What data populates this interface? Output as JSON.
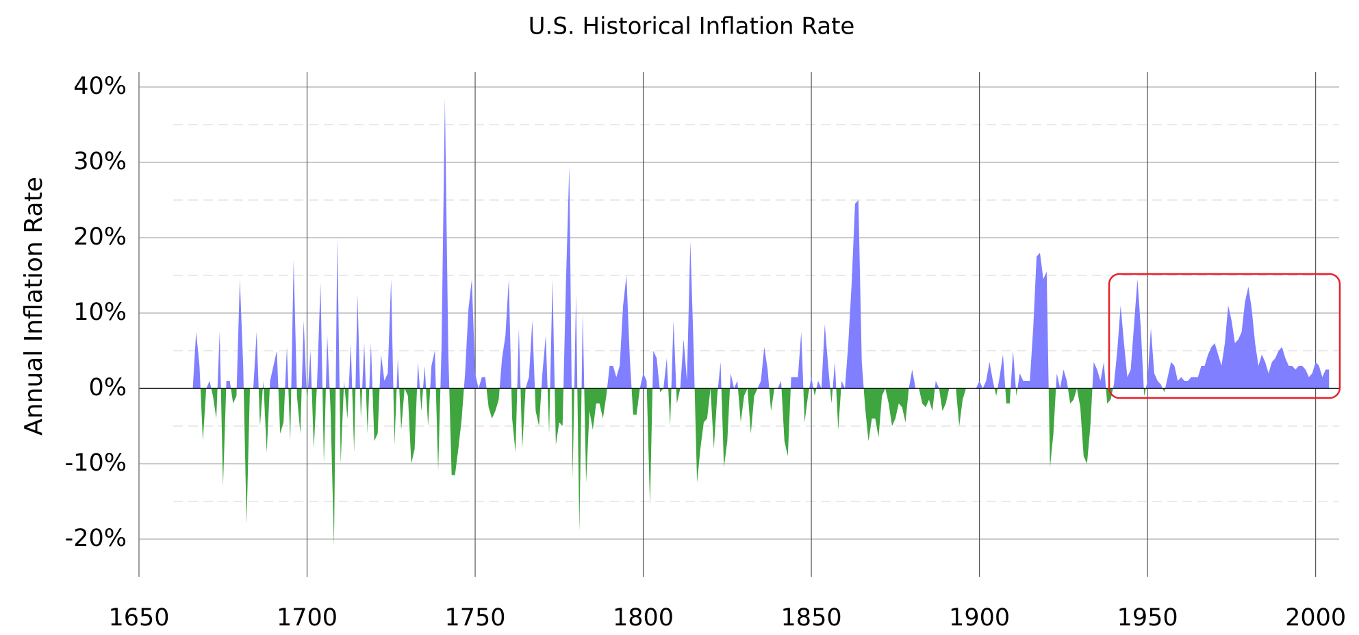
{
  "chart_data": {
    "type": "area",
    "title": "U.S. Historical Inflation Rate",
    "ylabel": "Annual Inflation Rate",
    "color": "#7f7fff",
    "negative_color": "#3fa53f",
    "xlim": [
      1650,
      2007
    ],
    "ylim": [
      -25,
      42
    ],
    "xticks": [
      1650,
      1700,
      1750,
      1800,
      1850,
      1900,
      1950,
      2000
    ],
    "yticks": [
      {
        "value": -20,
        "label": "-20%"
      },
      {
        "value": -10,
        "label": "-10%"
      },
      {
        "value": 0,
        "label": "0%"
      },
      {
        "value": 10,
        "label": "10%"
      },
      {
        "value": 20,
        "label": "20%"
      },
      {
        "value": 30,
        "label": "30%"
      },
      {
        "value": 40,
        "label": "40%"
      }
    ],
    "minor_yticks": [
      -15,
      -5,
      5,
      15,
      25,
      35
    ],
    "grid": true,
    "x": [
      1666,
      1667,
      1668,
      1669,
      1670,
      1671,
      1672,
      1673,
      1674,
      1675,
      1676,
      1677,
      1678,
      1679,
      1680,
      1681,
      1682,
      1683,
      1684,
      1685,
      1686,
      1687,
      1688,
      1689,
      1690,
      1691,
      1692,
      1693,
      1694,
      1695,
      1696,
      1697,
      1698,
      1699,
      1700,
      1701,
      1702,
      1703,
      1704,
      1705,
      1706,
      1707,
      1708,
      1709,
      1710,
      1711,
      1712,
      1713,
      1714,
      1715,
      1716,
      1717,
      1718,
      1719,
      1720,
      1721,
      1722,
      1723,
      1724,
      1725,
      1726,
      1727,
      1728,
      1729,
      1730,
      1731,
      1732,
      1733,
      1734,
      1735,
      1736,
      1737,
      1738,
      1739,
      1740,
      1741,
      1742,
      1743,
      1744,
      1745,
      1746,
      1747,
      1748,
      1749,
      1750,
      1751,
      1752,
      1753,
      1754,
      1755,
      1756,
      1757,
      1758,
      1759,
      1760,
      1761,
      1762,
      1763,
      1764,
      1765,
      1766,
      1767,
      1768,
      1769,
      1770,
      1771,
      1772,
      1773,
      1774,
      1775,
      1776,
      1777,
      1778,
      1779,
      1780,
      1781,
      1782,
      1783,
      1784,
      1785,
      1786,
      1787,
      1788,
      1789,
      1790,
      1791,
      1792,
      1793,
      1794,
      1795,
      1796,
      1797,
      1798,
      1799,
      1800,
      1801,
      1802,
      1803,
      1804,
      1805,
      1806,
      1807,
      1808,
      1809,
      1810,
      1811,
      1812,
      1813,
      1814,
      1815,
      1816,
      1817,
      1818,
      1819,
      1820,
      1821,
      1822,
      1823,
      1824,
      1825,
      1826,
      1827,
      1828,
      1829,
      1830,
      1831,
      1832,
      1833,
      1834,
      1835,
      1836,
      1837,
      1838,
      1839,
      1840,
      1841,
      1842,
      1843,
      1844,
      1845,
      1846,
      1847,
      1848,
      1849,
      1850,
      1851,
      1852,
      1853,
      1854,
      1855,
      1856,
      1857,
      1858,
      1859,
      1860,
      1861,
      1862,
      1863,
      1864,
      1865,
      1866,
      1867,
      1868,
      1869,
      1870,
      1871,
      1872,
      1873,
      1874,
      1875,
      1876,
      1877,
      1878,
      1879,
      1880,
      1881,
      1882,
      1883,
      1884,
      1885,
      1886,
      1887,
      1888,
      1889,
      1890,
      1891,
      1892,
      1893,
      1894,
      1895,
      1896,
      1897,
      1898,
      1899,
      1900,
      1901,
      1902,
      1903,
      1904,
      1905,
      1906,
      1907,
      1908,
      1909,
      1910,
      1911,
      1912,
      1913,
      1914,
      1915,
      1916,
      1917,
      1918,
      1919,
      1920,
      1921,
      1922,
      1923,
      1924,
      1925,
      1926,
      1927,
      1928,
      1929,
      1930,
      1931,
      1932,
      1933,
      1934,
      1935,
      1936,
      1937,
      1938,
      1939,
      1940,
      1941,
      1942,
      1943,
      1944,
      1945,
      1946,
      1947,
      1948,
      1949,
      1950,
      1951,
      1952,
      1953,
      1954,
      1955,
      1956,
      1957,
      1958,
      1959,
      1960,
      1961,
      1962,
      1963,
      1964,
      1965,
      1966,
      1967,
      1968,
      1969,
      1970,
      1971,
      1972,
      1973,
      1974,
      1975,
      1976,
      1977,
      1978,
      1979,
      1980,
      1981,
      1982,
      1983,
      1984,
      1985,
      1986,
      1987,
      1988,
      1989,
      1990,
      1991,
      1992,
      1993,
      1994,
      1995,
      1996,
      1997,
      1998,
      1999,
      2000,
      2001,
      2002,
      2003,
      2004
    ],
    "values": [
      0,
      7.5,
      3,
      -7,
      0,
      1,
      -1,
      -4,
      7.5,
      -13,
      1,
      1,
      -2,
      -1,
      14.5,
      3,
      -18,
      0,
      0,
      7.5,
      -5,
      1,
      -8.5,
      1,
      3,
      5,
      -6,
      -4.5,
      5.5,
      -7,
      17,
      -1,
      -6,
      9,
      -2,
      5,
      -8,
      1,
      14,
      -10,
      7,
      -3,
      -21,
      20,
      -10,
      1,
      -4,
      6,
      -8.5,
      12.5,
      -4,
      6,
      -6,
      6,
      -7,
      -6,
      4.5,
      1,
      2,
      14.5,
      -7.5,
      4,
      -5.5,
      0,
      -1,
      -10,
      -8,
      3.5,
      -3,
      3,
      -5,
      3,
      5,
      -11,
      5.5,
      38.5,
      5,
      -11.5,
      -11.5,
      -8,
      -4,
      2,
      10.5,
      14.5,
      2,
      0,
      1.5,
      1.5,
      -2.5,
      -4,
      -3,
      -1.5,
      4,
      7,
      14.5,
      -4,
      -8.5,
      8,
      -8,
      0,
      1.5,
      9,
      -3,
      -5,
      2,
      7,
      -6,
      14.5,
      -7.5,
      -4.5,
      -5,
      14,
      29.5,
      -12,
      12.5,
      -19,
      10,
      -12.5,
      -3,
      -5.5,
      -2,
      -2,
      -4,
      -1,
      3,
      3,
      1.5,
      3,
      11,
      15,
      4,
      -3.5,
      -3.5,
      0,
      2,
      1,
      -15.5,
      5,
      4,
      -0.5,
      0,
      4,
      -5,
      9,
      -2,
      0,
      6.5,
      1,
      19.5,
      5,
      -12.5,
      -8,
      -4.5,
      -4,
      0,
      -8,
      -1,
      3.5,
      -10.5,
      -7,
      2,
      0,
      1,
      -4.5,
      -1,
      0,
      -6,
      -1,
      0,
      1,
      5.5,
      2.5,
      -3,
      0,
      0,
      1,
      -7,
      -9,
      1.5,
      1.5,
      1.5,
      7.5,
      -4.5,
      -1,
      1.5,
      -1,
      1,
      0,
      8.5,
      3,
      -2,
      3.5,
      -5.5,
      1,
      0,
      6,
      14,
      24.5,
      25,
      3.5,
      -2.5,
      -7,
      -4,
      -4,
      -6.5,
      -1,
      0,
      -2,
      -5,
      -4,
      -2,
      -2.5,
      -4.5,
      0,
      2.5,
      0,
      0,
      -2,
      -2.5,
      -1.5,
      -3,
      1,
      0,
      -3,
      -2,
      0,
      0,
      0,
      -5,
      -1.5,
      0,
      0,
      0,
      0,
      1,
      0,
      1,
      3.5,
      1,
      -1,
      1.5,
      4.5,
      -2,
      -2,
      5,
      -1,
      2,
      1,
      1,
      1,
      8,
      17.5,
      18,
      14.5,
      15.5,
      -10.5,
      -6,
      2,
      0,
      2.5,
      1,
      -2,
      -1.5,
      0,
      -2.5,
      -9,
      -10,
      -5,
      3.5,
      2.5,
      1,
      3.5,
      -2,
      -1.5,
      0.5,
      5,
      11,
      6,
      1.5,
      2.5,
      8.5,
      14.5,
      8,
      -1,
      1,
      8,
      2,
      1,
      0.5,
      -0.5,
      1.5,
      3.5,
      3,
      1,
      1.5,
      1,
      1,
      1.5,
      1.5,
      1.5,
      3,
      3,
      4.5,
      5.5,
      6,
      4.5,
      3,
      6,
      11,
      9,
      6,
      6.5,
      7.5,
      11.5,
      13.5,
      10.5,
      6,
      3,
      4.5,
      3.5,
      2,
      3.5,
      4,
      5,
      5.5,
      4,
      3,
      3,
      2.5,
      3,
      3,
      2.5,
      1.5,
      2,
      3.5,
      3,
      1.5,
      2.5,
      2.5
    ]
  }
}
